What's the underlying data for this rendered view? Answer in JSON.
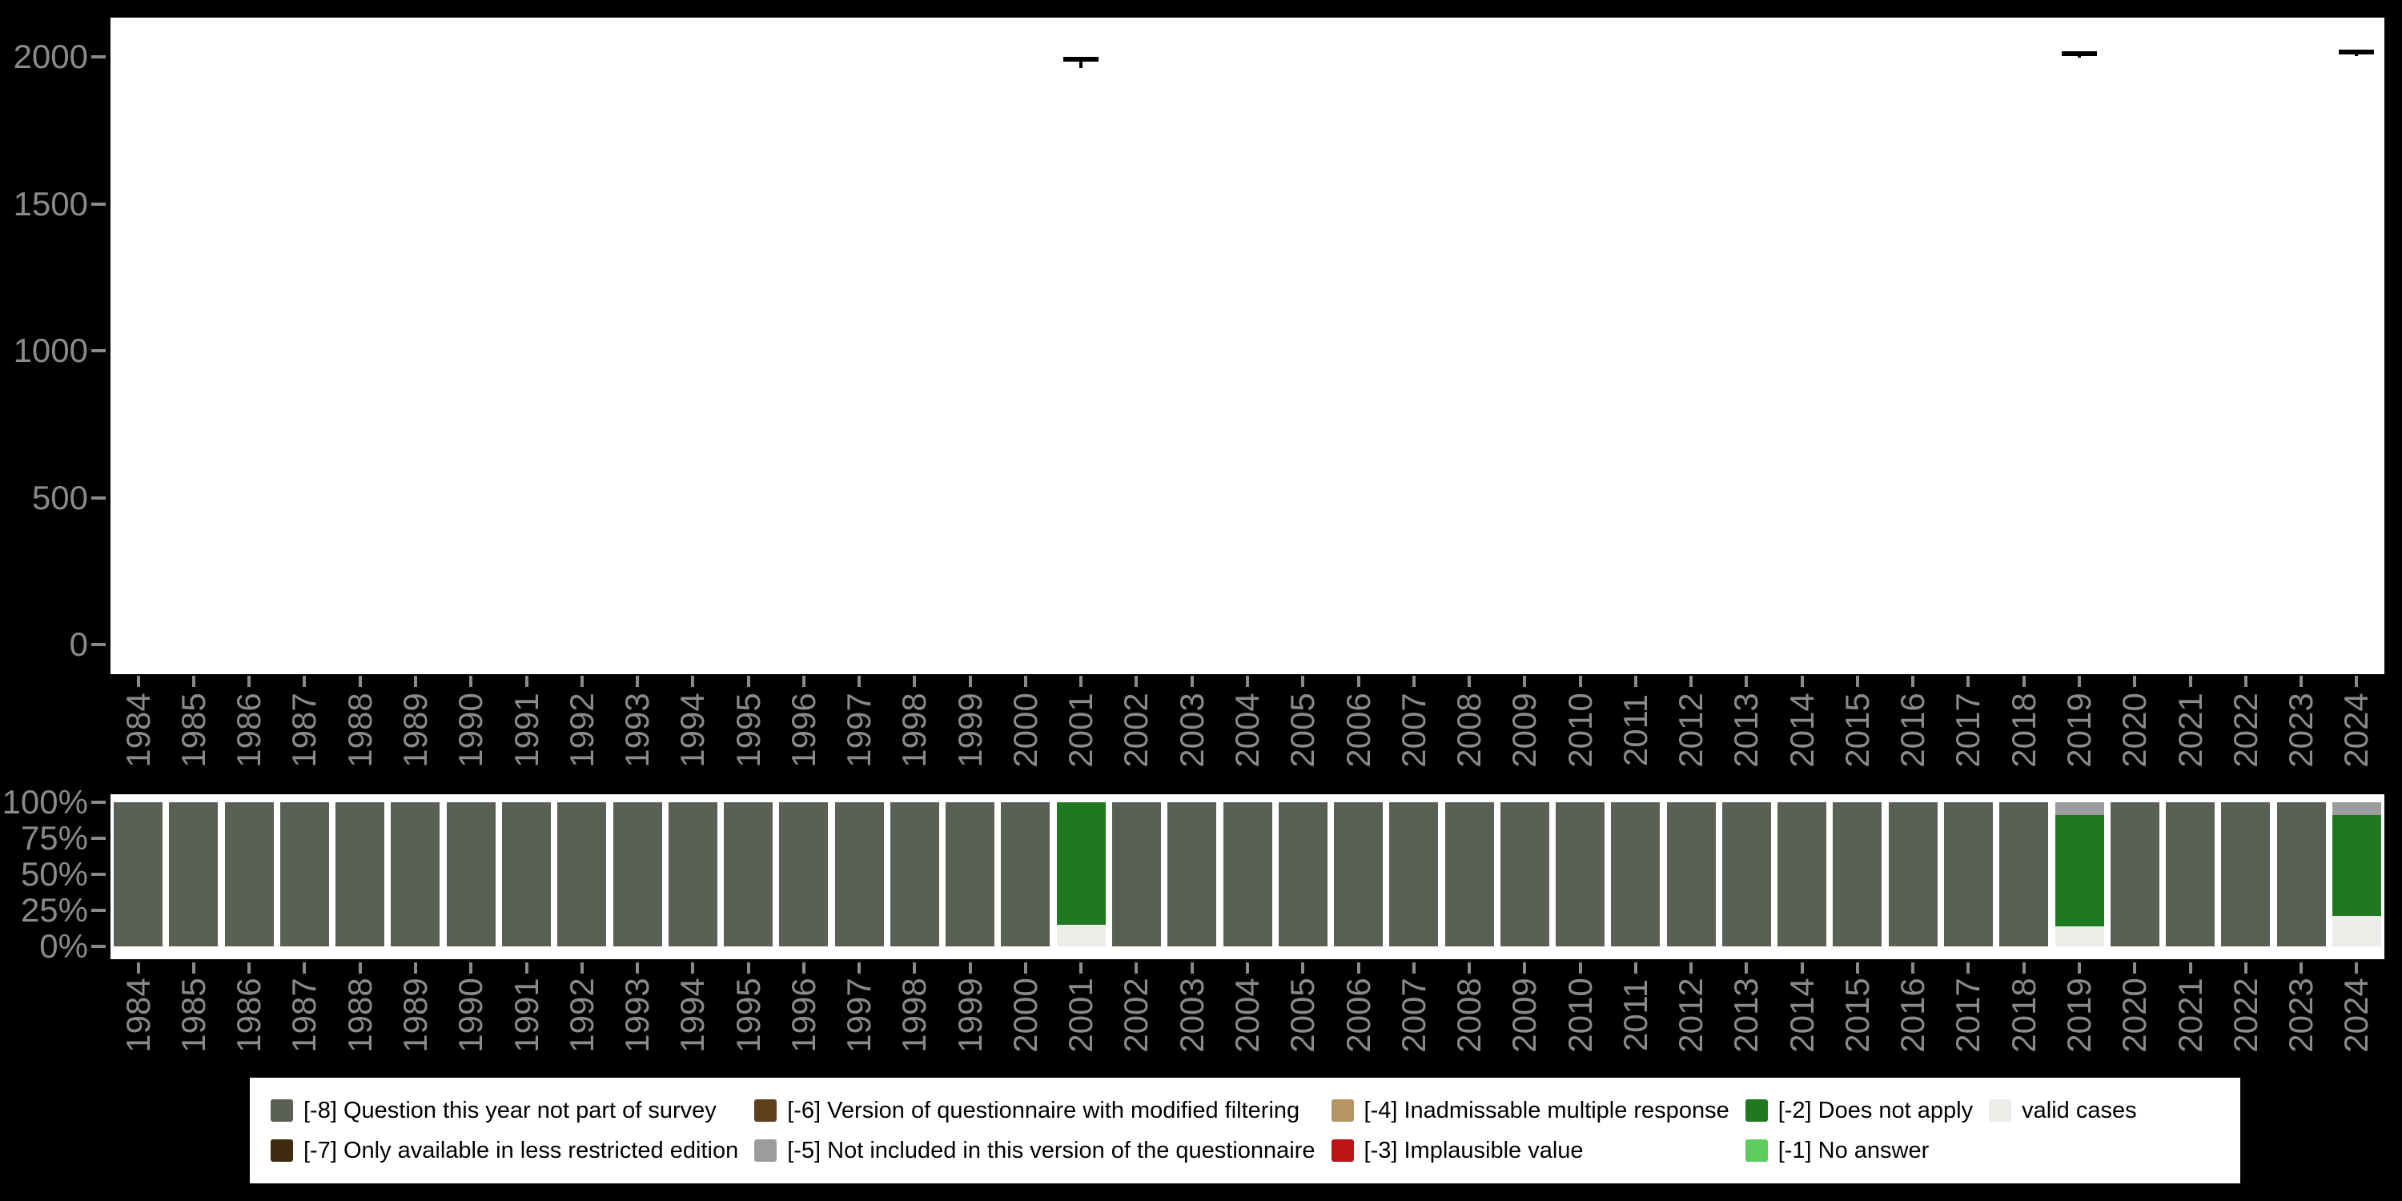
{
  "figure": {
    "background": "#000000",
    "panel_background": "#ffffff"
  },
  "palette": {
    "axis_text": "#8a8a8a",
    "mark": "#000000",
    "codes": {
      "-8": "#5a6054",
      "-7": "#3f2b10",
      "-6": "#5f3f1c",
      "-5": "#9c9c9c",
      "-4": "#b79464",
      "-3": "#bb1414",
      "-2": "#1f7a1f",
      "-1": "#5ecb5e",
      "valid": "#ebede9"
    }
  },
  "years": [
    "1984",
    "1985",
    "1986",
    "1987",
    "1988",
    "1989",
    "1990",
    "1991",
    "1992",
    "1993",
    "1994",
    "1995",
    "1996",
    "1997",
    "1998",
    "1999",
    "2000",
    "2001",
    "2002",
    "2003",
    "2004",
    "2005",
    "2006",
    "2007",
    "2008",
    "2009",
    "2010",
    "2011",
    "2012",
    "2013",
    "2014",
    "2015",
    "2016",
    "2017",
    "2018",
    "2019",
    "2020",
    "2021",
    "2022",
    "2023",
    "2024"
  ],
  "chart_data": [
    {
      "type": "boxplot",
      "panel": "top",
      "ylim": [
        0,
        2000
      ],
      "grid": false,
      "yticks": [
        {
          "label": "2000",
          "value": 2000
        },
        {
          "label": "1500",
          "value": 1500
        },
        {
          "label": "1000",
          "value": 1000
        },
        {
          "label": "500",
          "value": 500
        },
        {
          "label": "0",
          "value": 0
        }
      ],
      "x_categories_ref": "years",
      "marks": [
        {
          "x": "2001",
          "lo": 1962,
          "q1": 1993,
          "median": 1996,
          "q3": 2001,
          "hi": 2001
        },
        {
          "x": "2019",
          "lo": 1998,
          "q1": 2013,
          "median": 2016,
          "q3": 2019,
          "hi": 2019
        },
        {
          "x": "2024",
          "lo": 2002,
          "q1": 2018,
          "median": 2021,
          "q3": 2024,
          "hi": 2024
        }
      ]
    },
    {
      "type": "bar",
      "panel": "bottom",
      "stacked": "percent",
      "ylim": [
        0,
        100
      ],
      "grid": false,
      "yticks": [
        {
          "label": "100%",
          "value": 100
        },
        {
          "label": "75%",
          "value": 75
        },
        {
          "label": "50%",
          "value": 50
        },
        {
          "label": "25%",
          "value": 25
        },
        {
          "label": "0%",
          "value": 0
        }
      ],
      "x_categories_ref": "years",
      "default_stack": [
        {
          "key": "-8",
          "pct": 100
        }
      ],
      "bars": {
        "2001": [
          {
            "key": "valid",
            "pct": 15
          },
          {
            "key": "-2",
            "pct": 85
          }
        ],
        "2019": [
          {
            "key": "valid",
            "pct": 14
          },
          {
            "key": "-2",
            "pct": 77
          },
          {
            "key": "-5",
            "pct": 9
          }
        ],
        "2024": [
          {
            "key": "valid",
            "pct": 21
          },
          {
            "key": "-2",
            "pct": 70
          },
          {
            "key": "-5",
            "pct": 9
          }
        ]
      }
    }
  ],
  "legend": {
    "columns": [
      [
        {
          "key": "-8",
          "label": "[-8] Question this year not part of survey"
        },
        {
          "key": "-7",
          "label": "[-7] Only available in less restricted edition"
        }
      ],
      [
        {
          "key": "-6",
          "label": "[-6] Version of questionnaire with modified filtering"
        },
        {
          "key": "-5",
          "label": "[-5] Not included in this version of the questionnaire"
        }
      ],
      [
        {
          "key": "-4",
          "label": "[-4] Inadmissable multiple response"
        },
        {
          "key": "-3",
          "label": "[-3] Implausible value"
        }
      ],
      [
        {
          "key": "-2",
          "label": "[-2] Does not apply"
        },
        {
          "key": "-1",
          "label": "[-1] No answer"
        }
      ],
      [
        {
          "key": "valid",
          "label": "valid cases"
        }
      ]
    ]
  }
}
